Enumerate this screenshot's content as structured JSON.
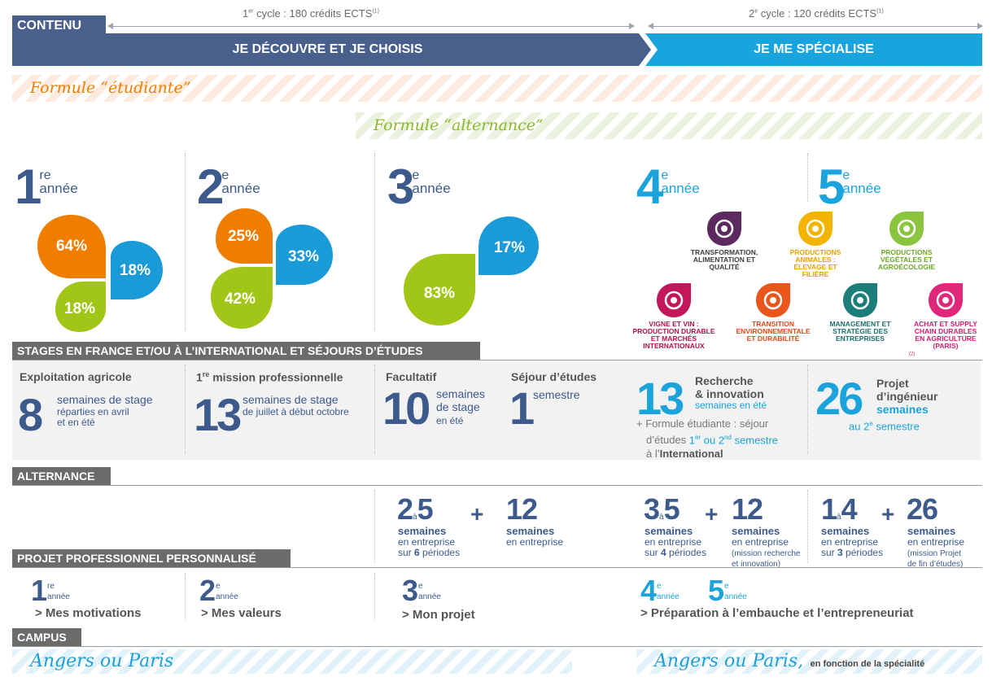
{
  "header": {
    "contenu": "CONTENU",
    "cycle1": {
      "prefix": "1",
      "sup": "er",
      "text": " cycle : 180 crédits ECTS",
      "note": "(1)"
    },
    "cycle2": {
      "prefix": "2",
      "sup": "e",
      "text": " cycle : 120 crédits ECTS",
      "note": "(1)"
    },
    "band1": "JE DÉCOUVRE ET JE CHOISIS",
    "band2": "JE ME SPÉCIALISE",
    "colors": {
      "navy": "#3d5a8c",
      "blue": "#1ba3dc",
      "orange": "#ef7d00",
      "lime": "#a2c617"
    }
  },
  "formules": {
    "etudiante": "Formule “étudiante”",
    "alternance": "Formule “alternance”"
  },
  "years": [
    {
      "num": "1",
      "sup": "re",
      "annee": "année"
    },
    {
      "num": "2",
      "sup": "e",
      "annee": "année"
    },
    {
      "num": "3",
      "sup": "e",
      "annee": "année"
    },
    {
      "num": "4",
      "sup": "e",
      "annee": "année"
    },
    {
      "num": "5",
      "sup": "e",
      "annee": "année"
    }
  ],
  "chart_data": [
    {
      "type": "pie",
      "categories": [
        "orange",
        "blue",
        "lime"
      ],
      "values": [
        64,
        18,
        18
      ],
      "labels": [
        "64%",
        "18%",
        "18%"
      ]
    },
    {
      "type": "pie",
      "categories": [
        "orange",
        "blue",
        "lime"
      ],
      "values": [
        25,
        33,
        42
      ],
      "labels": [
        "25%",
        "33%",
        "42%"
      ]
    },
    {
      "type": "pie",
      "categories": [
        "blue",
        "lime"
      ],
      "values": [
        17,
        83
      ],
      "labels": [
        "17%",
        "83%"
      ]
    }
  ],
  "specialites": [
    {
      "label": "TRANSFORMATION, ALIMENTATION ET QUALITÉ",
      "color": "#5c2a5e",
      "text_color": "#3d3d3d",
      "icon": "plate-icon"
    },
    {
      "label": "PRODUCTIONS ANIMALES : ÉLEVAGE ET FILIÈRE",
      "color": "#f2b400",
      "text_color": "#e8a000",
      "icon": "cow-icon"
    },
    {
      "label": "PRODUCTIONS VÉGÉTALES ET AGROÉCOLOGIE",
      "color": "#8bc53f",
      "text_color": "#6aa82a",
      "icon": "plant-icon"
    },
    {
      "label": "VIGNE ET VIN : PRODUCTION DURABLE ET MARCHÉS INTERNATIONAUX",
      "color": "#c2185b",
      "text_color": "#b0124d",
      "icon": "grape-icon"
    },
    {
      "label": "TRANSITION ENVIRONNEMENTALE ET DURABILITÉ",
      "color": "#e8561c",
      "text_color": "#e04a18",
      "icon": "recycle-icon"
    },
    {
      "label": "MANAGEMENT ET STRATÉGIE DES ENTREPRISES",
      "color": "#1d7d7a",
      "text_color": "#1d6e6c",
      "icon": "chart-icon"
    },
    {
      "label": "ACHAT ET SUPPLY CHAIN DURABLES EN AGRICULTURE (PARIS)",
      "note": "(2)",
      "color": "#e0287a",
      "text_color": "#d01f6d",
      "icon": "cart-icon"
    }
  ],
  "stages": {
    "header": "STAGES EN FRANCE ET/OU À L’INTERNATIONAL ET SÉJOURS D’ÉTUDES",
    "s1": {
      "title": "Exploitation agricole",
      "num": "8",
      "unit": "semaines de stage",
      "detail1": "réparties en avril",
      "detail2": "et en été"
    },
    "s2": {
      "title_sup": "re",
      "title_pre": "1",
      "title": " mission professionnelle",
      "num": "13",
      "unit": "semaines de stage",
      "detail1": "de juillet à début octobre"
    },
    "s3": {
      "title": "Facultatif",
      "num": "10",
      "unit1": "semaines",
      "unit2": "de stage",
      "detail1": "en été"
    },
    "s4": {
      "title": "Séjour d’études",
      "num": "1",
      "unit": "semestre"
    },
    "s5": {
      "num": "13",
      "title1": "Recherche",
      "title2": "& innovation",
      "unit": "semaines",
      "unit2": " en été",
      "extra1": "+ Formule étudiante : séjour",
      "extra2": "d’études ",
      "extra_1": "1",
      "extra_1sup": "er",
      "extra_or": " ou ",
      "extra_2": "2",
      "extra_2sup": "nd",
      "extra_sem": " semestre",
      "extra3": "à l’",
      "extra3b": "International"
    },
    "s6": {
      "num": "26",
      "title1": "Projet",
      "title2": "d’ingénieur",
      "unit": "semaines",
      "detail1": "au 2",
      "detail_sup": "e",
      "detail2": " semestre"
    }
  },
  "alternance": {
    "header": "ALTERNANCE",
    "y3a": {
      "from": "2",
      "a": "à",
      "to": "5",
      "unit": "semaines",
      "l1": "en entreprise",
      "l2pre": "sur ",
      "l2num": "6",
      "l2post": " périodes"
    },
    "y3b": {
      "num": "12",
      "unit": "semaines",
      "l1": "en entreprise"
    },
    "y4a": {
      "from": "3",
      "a": "à",
      "to": "5",
      "unit": "semaines",
      "l1": "en entreprise",
      "l2pre": "sur ",
      "l2num": "4",
      "l2post": " périodes"
    },
    "y4b": {
      "num": "12",
      "unit": "semaines",
      "l1": "en entreprise",
      "l2": "(mission recherche",
      "l3": "et innovation)"
    },
    "y5a": {
      "from": "1",
      "a": "à",
      "to": "4",
      "unit": "semaines",
      "l1": "en entreprise",
      "l2pre": "sur ",
      "l2num": "3",
      "l2post": " périodes"
    },
    "y5b": {
      "num": "26",
      "unit": "semaines",
      "l1": "en entreprise",
      "l2": "(mission Projet",
      "l3": "de fin d’études)"
    },
    "plus": "+"
  },
  "ppp": {
    "header": "PROJET PROFESSIONNEL PERSONNALISÉ",
    "y1": {
      "num": "1",
      "sup": "re",
      "annee": "année",
      "label": "> Mes motivations"
    },
    "y2": {
      "num": "2",
      "sup": "e",
      "annee": "année",
      "label": "> Mes valeurs"
    },
    "y3": {
      "num": "3",
      "sup": "e",
      "annee": "année",
      "label": "> Mon projet"
    },
    "y4": {
      "num": "4",
      "sup": "e",
      "annee": "année"
    },
    "y5": {
      "num": "5",
      "sup": "e",
      "annee": "année",
      "label": "> Préparation à l’embauche et l’entrepreneuriat"
    }
  },
  "campus": {
    "header": "CAMPUS",
    "left": "Angers ou Paris",
    "right": "Angers ou Paris,",
    "right_note": "en fonction de la spécialité"
  }
}
